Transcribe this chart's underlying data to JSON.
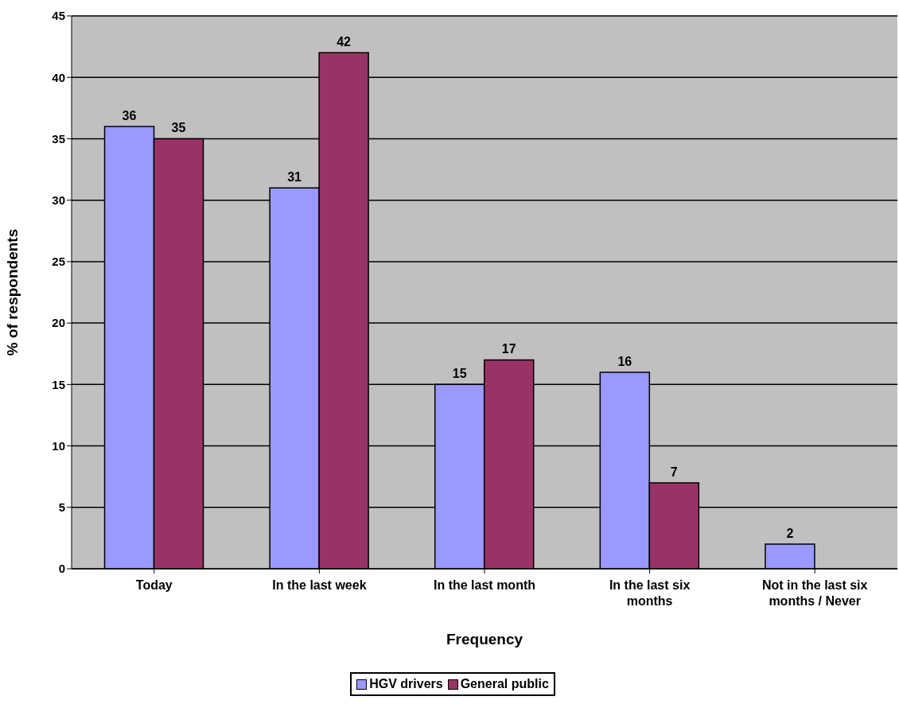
{
  "chart_data": {
    "type": "bar",
    "xlabel": "Frequency",
    "ylabel": "% of respondents",
    "categories": [
      "Today",
      "In the last week",
      "In the last month",
      "In the last six months",
      "Not in the last six months / Never"
    ],
    "series": [
      {
        "name": "HGV drivers",
        "color": "#9999ff",
        "values": [
          36,
          31,
          15,
          16,
          2
        ]
      },
      {
        "name": "General public",
        "color": "#993366",
        "values": [
          35,
          42,
          17,
          7,
          null
        ]
      }
    ],
    "ylim": [
      0,
      45
    ],
    "yticks": [
      0,
      5,
      10,
      15,
      20,
      25,
      30,
      35,
      40,
      45
    ],
    "grid": "y",
    "legend": "bottom",
    "data_labels": true
  }
}
